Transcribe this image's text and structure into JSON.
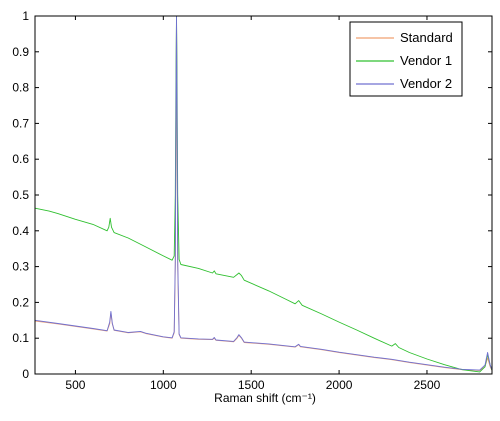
{
  "chart_data": {
    "type": "line",
    "title": "",
    "xlabel": "Raman shift (cm⁻¹)",
    "ylabel": "",
    "xlim": [
      270,
      2870
    ],
    "ylim": [
      0,
      1
    ],
    "x_ticks": [
      500,
      1000,
      1500,
      2000,
      2500
    ],
    "y_ticks": [
      0,
      0.1,
      0.2,
      0.3,
      0.4,
      0.5,
      0.6,
      0.7,
      0.8,
      0.9,
      1
    ],
    "grid": false,
    "legend_position": "top-right",
    "series": [
      {
        "name": "Standard",
        "color": "#f0a070",
        "points": [
          [
            270,
            0.148
          ],
          [
            400,
            0.14
          ],
          [
            600,
            0.126
          ],
          [
            680,
            0.12
          ],
          [
            695,
            0.14
          ],
          [
            702,
            0.17
          ],
          [
            710,
            0.14
          ],
          [
            720,
            0.122
          ],
          [
            800,
            0.115
          ],
          [
            870,
            0.118
          ],
          [
            900,
            0.113
          ],
          [
            1000,
            0.103
          ],
          [
            1050,
            0.1
          ],
          [
            1062,
            0.115
          ],
          [
            1068,
            0.3
          ],
          [
            1072,
            0.7
          ],
          [
            1075,
            1.0
          ],
          [
            1078,
            0.7
          ],
          [
            1082,
            0.3
          ],
          [
            1090,
            0.11
          ],
          [
            1100,
            0.1
          ],
          [
            1200,
            0.097
          ],
          [
            1280,
            0.096
          ],
          [
            1290,
            0.1
          ],
          [
            1300,
            0.094
          ],
          [
            1400,
            0.09
          ],
          [
            1420,
            0.1
          ],
          [
            1430,
            0.108
          ],
          [
            1445,
            0.1
          ],
          [
            1460,
            0.088
          ],
          [
            1600,
            0.083
          ],
          [
            1750,
            0.075
          ],
          [
            1770,
            0.082
          ],
          [
            1780,
            0.076
          ],
          [
            1900,
            0.068
          ],
          [
            2000,
            0.06
          ],
          [
            2100,
            0.053
          ],
          [
            2200,
            0.046
          ],
          [
            2300,
            0.04
          ],
          [
            2400,
            0.032
          ],
          [
            2500,
            0.025
          ],
          [
            2600,
            0.018
          ],
          [
            2700,
            0.012
          ],
          [
            2800,
            0.01
          ],
          [
            2830,
            0.02
          ],
          [
            2845,
            0.045
          ],
          [
            2860,
            0.02
          ],
          [
            2870,
            0.01
          ]
        ]
      },
      {
        "name": "Vendor 1",
        "color": "#30c030",
        "points": [
          [
            270,
            0.463
          ],
          [
            350,
            0.455
          ],
          [
            400,
            0.448
          ],
          [
            500,
            0.432
          ],
          [
            600,
            0.418
          ],
          [
            680,
            0.4
          ],
          [
            690,
            0.41
          ],
          [
            698,
            0.435
          ],
          [
            705,
            0.41
          ],
          [
            720,
            0.395
          ],
          [
            800,
            0.38
          ],
          [
            900,
            0.355
          ],
          [
            1000,
            0.33
          ],
          [
            1050,
            0.318
          ],
          [
            1062,
            0.33
          ],
          [
            1068,
            0.5
          ],
          [
            1072,
            0.85
          ],
          [
            1075,
            1.0
          ],
          [
            1078,
            0.85
          ],
          [
            1082,
            0.5
          ],
          [
            1090,
            0.32
          ],
          [
            1100,
            0.306
          ],
          [
            1200,
            0.295
          ],
          [
            1280,
            0.282
          ],
          [
            1290,
            0.288
          ],
          [
            1300,
            0.28
          ],
          [
            1400,
            0.27
          ],
          [
            1420,
            0.278
          ],
          [
            1430,
            0.282
          ],
          [
            1445,
            0.275
          ],
          [
            1460,
            0.262
          ],
          [
            1600,
            0.232
          ],
          [
            1700,
            0.208
          ],
          [
            1750,
            0.196
          ],
          [
            1770,
            0.205
          ],
          [
            1790,
            0.192
          ],
          [
            1900,
            0.168
          ],
          [
            2000,
            0.145
          ],
          [
            2100,
            0.123
          ],
          [
            2200,
            0.1
          ],
          [
            2300,
            0.078
          ],
          [
            2320,
            0.085
          ],
          [
            2340,
            0.074
          ],
          [
            2400,
            0.06
          ],
          [
            2500,
            0.042
          ],
          [
            2600,
            0.026
          ],
          [
            2700,
            0.012
          ],
          [
            2800,
            0.006
          ],
          [
            2830,
            0.02
          ],
          [
            2845,
            0.055
          ],
          [
            2860,
            0.025
          ],
          [
            2870,
            0.01
          ]
        ]
      },
      {
        "name": "Vendor 2",
        "color": "#7070d0",
        "points": [
          [
            270,
            0.15
          ],
          [
            400,
            0.141
          ],
          [
            600,
            0.127
          ],
          [
            680,
            0.121
          ],
          [
            695,
            0.145
          ],
          [
            702,
            0.175
          ],
          [
            710,
            0.142
          ],
          [
            720,
            0.123
          ],
          [
            800,
            0.116
          ],
          [
            870,
            0.119
          ],
          [
            900,
            0.114
          ],
          [
            1000,
            0.104
          ],
          [
            1050,
            0.101
          ],
          [
            1062,
            0.118
          ],
          [
            1068,
            0.32
          ],
          [
            1072,
            0.75
          ],
          [
            1075,
            1.0
          ],
          [
            1078,
            0.75
          ],
          [
            1082,
            0.32
          ],
          [
            1090,
            0.112
          ],
          [
            1100,
            0.101
          ],
          [
            1200,
            0.098
          ],
          [
            1280,
            0.097
          ],
          [
            1290,
            0.102
          ],
          [
            1300,
            0.095
          ],
          [
            1400,
            0.091
          ],
          [
            1420,
            0.102
          ],
          [
            1430,
            0.11
          ],
          [
            1445,
            0.101
          ],
          [
            1460,
            0.089
          ],
          [
            1600,
            0.084
          ],
          [
            1750,
            0.076
          ],
          [
            1770,
            0.083
          ],
          [
            1780,
            0.077
          ],
          [
            1900,
            0.069
          ],
          [
            2000,
            0.061
          ],
          [
            2100,
            0.054
          ],
          [
            2200,
            0.047
          ],
          [
            2300,
            0.041
          ],
          [
            2400,
            0.033
          ],
          [
            2500,
            0.026
          ],
          [
            2600,
            0.019
          ],
          [
            2700,
            0.013
          ],
          [
            2800,
            0.011
          ],
          [
            2830,
            0.025
          ],
          [
            2845,
            0.06
          ],
          [
            2860,
            0.025
          ],
          [
            2870,
            0.012
          ]
        ]
      }
    ]
  }
}
